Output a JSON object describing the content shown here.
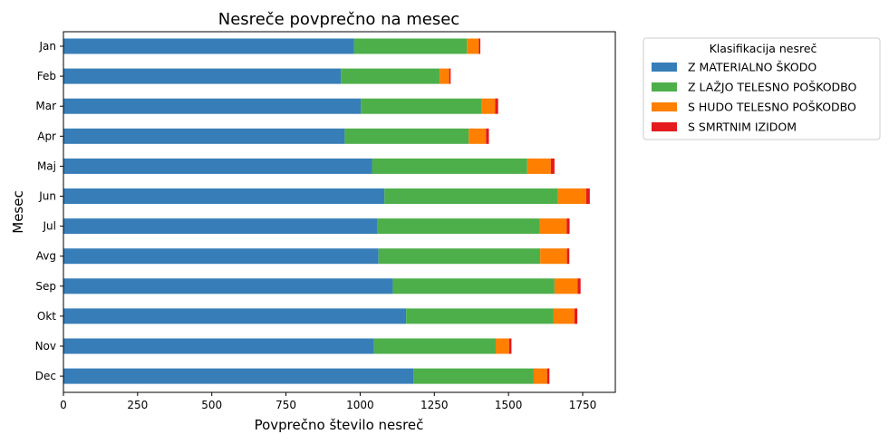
{
  "chart_data": {
    "type": "bar",
    "orientation": "horizontal",
    "stacked": true,
    "title": "Nesreče povprečno na mesec",
    "xlabel": "Povprečno število nesreč",
    "ylabel": "Mesec",
    "xlim": [
      0,
      1860
    ],
    "xticks": [
      0,
      250,
      500,
      750,
      1000,
      1250,
      1500,
      1750
    ],
    "grid": false,
    "legend_title": "Klasifikacija nesreč",
    "legend_position": "outside-top-right",
    "categories": [
      "Jan",
      "Feb",
      "Mar",
      "Apr",
      "Maj",
      "Jun",
      "Jul",
      "Avg",
      "Sep",
      "Okt",
      "Nov",
      "Dec"
    ],
    "series": [
      {
        "name": "Z MATERIALNO ŠKODO",
        "color": "#377eb8",
        "values": [
          980,
          935,
          1002,
          948,
          1040,
          1082,
          1058,
          1062,
          1110,
          1155,
          1047,
          1180
        ]
      },
      {
        "name": "Z LAŽJO TELESNO POŠKODBO",
        "color": "#4daf4a",
        "values": [
          380,
          333,
          408,
          418,
          523,
          585,
          548,
          545,
          545,
          497,
          410,
          405
        ]
      },
      {
        "name": "S HUDO TELESNO POŠKODBO",
        "color": "#ff7f00",
        "values": [
          40,
          32,
          45,
          58,
          80,
          95,
          90,
          90,
          78,
          70,
          45,
          45
        ]
      },
      {
        "name": "S SMRTNIM IZIDOM",
        "color": "#e41a1c",
        "values": [
          5,
          5,
          10,
          10,
          12,
          12,
          10,
          8,
          10,
          10,
          8,
          8
        ]
      }
    ]
  }
}
